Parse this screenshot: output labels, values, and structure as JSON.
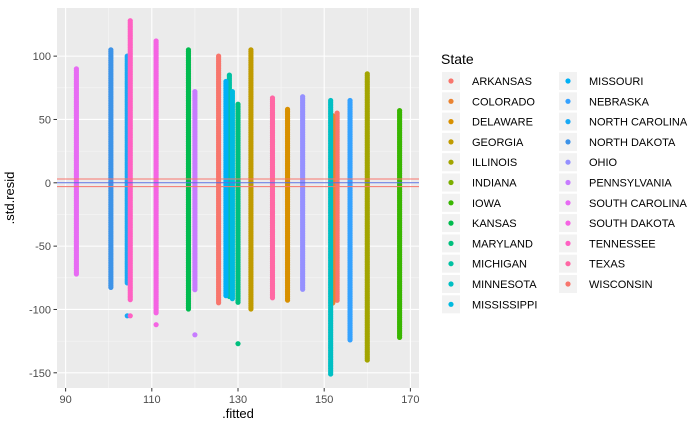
{
  "chart_data": {
    "type": "scatter",
    "xlabel": ".fitted",
    "ylabel": ".std.resid",
    "xlim": [
      88,
      172
    ],
    "ylim": [
      -162,
      138
    ],
    "x_ticks": [
      90,
      110,
      130,
      150,
      170
    ],
    "y_ticks": [
      -150,
      -100,
      -50,
      0,
      50,
      100
    ],
    "grid": true,
    "legend": {
      "title": "State",
      "position": "right"
    },
    "hlines": [
      {
        "y": 3,
        "color": "#F8766D"
      },
      {
        "y": 0,
        "color": "#5B6FE0"
      },
      {
        "y": -3,
        "color": "#F8766D"
      }
    ],
    "series": [
      {
        "name": "ARKANSAS",
        "color": "#F8766D",
        "x": 153.0,
        "ymin": -93,
        "ymax": 55,
        "extra": []
      },
      {
        "name": "COLORADO",
        "color": "#EA8331",
        "x": 152.0,
        "ymin": -95,
        "ymax": 53,
        "extra": []
      },
      {
        "name": "DELAWARE",
        "color": "#D89000",
        "x": 141.5,
        "ymin": -93,
        "ymax": 58,
        "extra": []
      },
      {
        "name": "GEORGIA",
        "color": "#C09B00",
        "x": 133.0,
        "ymin": -100,
        "ymax": 105,
        "extra": []
      },
      {
        "name": "ILLINOIS",
        "color": "#A3A500",
        "x": 160.0,
        "ymin": -140,
        "ymax": 86,
        "extra": []
      },
      {
        "name": "INDIANA",
        "color": "#7CAE00",
        "x": 127.5,
        "ymin": -85,
        "ymax": 72,
        "extra": []
      },
      {
        "name": "IOWA",
        "color": "#39B600",
        "x": 167.5,
        "ymin": -123,
        "ymax": 57,
        "extra": []
      },
      {
        "name": "KANSAS",
        "color": "#00BB4E",
        "x": 118.5,
        "ymin": -100,
        "ymax": 105,
        "extra": []
      },
      {
        "name": "MARYLAND",
        "color": "#00BF7D",
        "x": 130.0,
        "ymin": -95,
        "ymax": 62,
        "extra": [
          -127
        ]
      },
      {
        "name": "MICHIGAN",
        "color": "#00C1A3",
        "x": 128.0,
        "ymin": -90,
        "ymax": 85,
        "extra": []
      },
      {
        "name": "MINNESOTA",
        "color": "#00BFC4",
        "x": 151.5,
        "ymin": -152,
        "ymax": 65,
        "extra": []
      },
      {
        "name": "MISSISSIPPI",
        "color": "#00BAE0",
        "x": 128.7,
        "ymin": -92,
        "ymax": 72,
        "extra": []
      },
      {
        "name": "MISSOURI",
        "color": "#00B0F6",
        "x": 127.2,
        "ymin": -90,
        "ymax": 80,
        "extra": []
      },
      {
        "name": "NEBRASKA",
        "color": "#35A2FF",
        "x": 156.0,
        "ymin": -125,
        "ymax": 65,
        "extra": []
      },
      {
        "name": "NORTH CAROLINA",
        "color": "#19A9F5",
        "x": 104.3,
        "ymin": -80,
        "ymax": 100,
        "extra": [
          -105
        ]
      },
      {
        "name": "NORTH DAKOTA",
        "color": "#3D93E8",
        "x": 100.5,
        "ymin": -83,
        "ymax": 105,
        "extra": []
      },
      {
        "name": "OHIO",
        "color": "#9590FF",
        "x": 145.0,
        "ymin": -85,
        "ymax": 68,
        "extra": []
      },
      {
        "name": "PENNSYLVANIA",
        "color": "#C77CFF",
        "x": 120.0,
        "ymin": -85,
        "ymax": 72,
        "extra": [
          -120
        ]
      },
      {
        "name": "SOUTH CAROLINA",
        "color": "#E76BF3",
        "x": 92.5,
        "ymin": -72,
        "ymax": 90,
        "extra": []
      },
      {
        "name": "SOUTH DAKOTA",
        "color": "#F564E3",
        "x": 111.0,
        "ymin": -103,
        "ymax": 112,
        "extra": [
          -112
        ]
      },
      {
        "name": "TENNESSEE",
        "color": "#FF61C3",
        "x": 105.0,
        "ymin": -93,
        "ymax": 128,
        "extra": [
          -105
        ]
      },
      {
        "name": "TEXAS",
        "color": "#FF67A4",
        "x": 138.0,
        "ymin": -92,
        "ymax": 67,
        "extra": []
      },
      {
        "name": "WISCONSIN",
        "color": "#F8766D",
        "x": 125.5,
        "ymin": -95,
        "ymax": 100,
        "extra": []
      }
    ]
  }
}
